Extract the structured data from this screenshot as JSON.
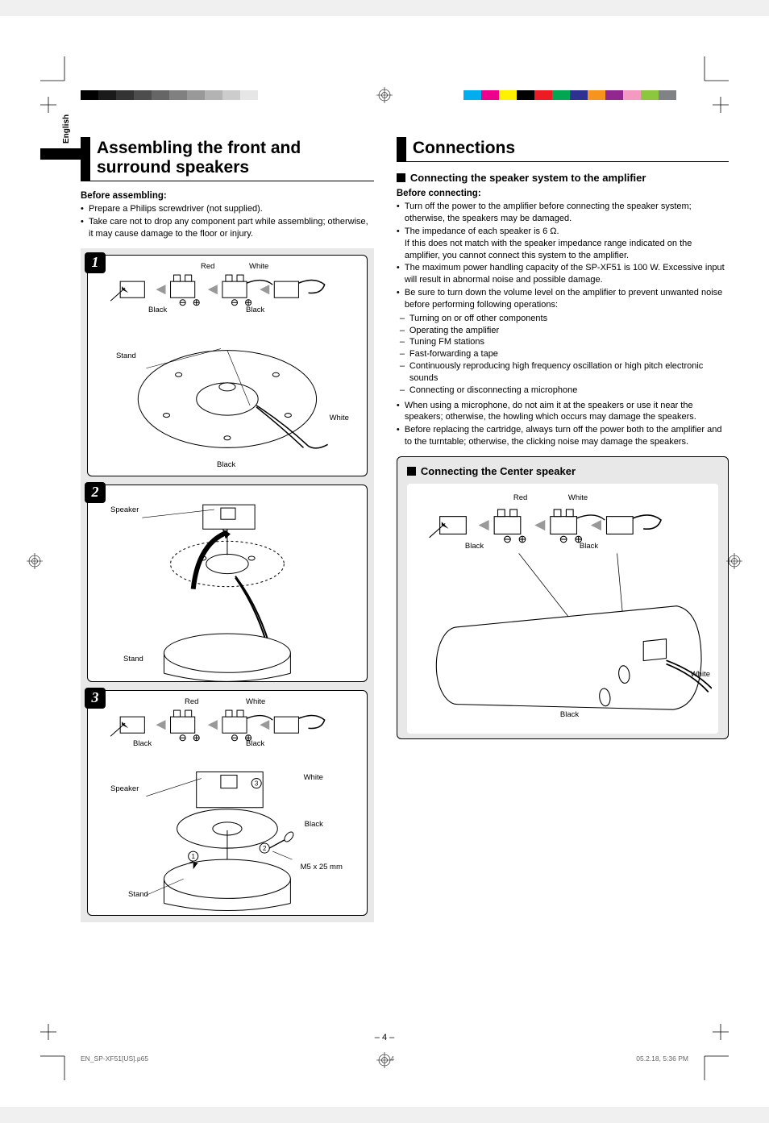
{
  "language_tab": "English",
  "page_number": "– 4 –",
  "footer": {
    "file": "EN_SP-XF51[US].p65",
    "sheet": "4",
    "timestamp": "05.2.18, 5:36 PM"
  },
  "crop_mark_color": "#000000",
  "colorbar_left": {
    "gradient": [
      "#000000",
      "#1a1a1a",
      "#333333",
      "#4d4d4d",
      "#666666",
      "#808080",
      "#999999",
      "#b3b3b3",
      "#cccccc",
      "#e6e6e6",
      "#ffffff"
    ]
  },
  "colorbar_right": [
    "#00aeef",
    "#ec008c",
    "#fff200",
    "#000000",
    "#ed1c24",
    "#00a651",
    "#2e3192",
    "#f7941d",
    "#92278f",
    "#f49ac1",
    "#8dc63f",
    "#808285"
  ],
  "left": {
    "title": "Assembling the front and surround speakers",
    "before_heading": "Before assembling:",
    "bullets": [
      "Prepare a Philips screwdriver (not supplied).",
      "Take care not to drop any component part while assembling; otherwise, it may cause damage to the floor or injury."
    ],
    "steps": [
      {
        "num": "1",
        "labels": {
          "red": "Red",
          "white": "White",
          "black1": "Black",
          "black2": "Black",
          "stand": "Stand",
          "white2": "White",
          "black3": "Black"
        }
      },
      {
        "num": "2",
        "labels": {
          "speaker": "Speaker",
          "stand": "Stand"
        }
      },
      {
        "num": "3",
        "labels": {
          "red": "Red",
          "white": "White",
          "black1": "Black",
          "black2": "Black",
          "speaker": "Speaker",
          "white2": "White",
          "black3": "Black",
          "stand": "Stand",
          "screw": "M5 x 25 mm"
        }
      }
    ]
  },
  "right": {
    "title": "Connections",
    "sub1": "Connecting the speaker system to the amplifier",
    "before_heading": "Before connecting:",
    "bullets_main": [
      "Turn off the power to the amplifier before connecting the speaker system; otherwise, the speakers may be damaged.",
      "The impedance of each speaker is 6 Ω.\nIf this does not match with the speaker impedance range indicated on the amplifier, you cannot connect this system to the amplifier.",
      "The maximum power handling capacity of the SP-XF51 is 100 W. Excessive input will result in abnormal noise and possible damage.",
      "Be sure to turn down the volume level on the amplifier to prevent unwanted noise before performing following operations:"
    ],
    "dashes": [
      "Turning on or off other components",
      "Operating the amplifier",
      "Tuning FM stations",
      "Fast-forwarding a tape",
      "Continuously reproducing high frequency oscillation or high pitch electronic sounds",
      "Connecting or disconnecting a microphone"
    ],
    "bullets_after": [
      "When using a microphone, do not aim it at the speakers or use it near the speakers; otherwise, the howling which occurs may damage the speakers.",
      "Before replacing the cartridge, always turn off the power both to the amplifier and to the turntable; otherwise, the clicking noise may damage the speakers."
    ],
    "center_heading": "Connecting the Center speaker",
    "center_labels": {
      "red": "Red",
      "white": "White",
      "black1": "Black",
      "black2": "Black",
      "white2": "White",
      "black3": "Black"
    }
  }
}
